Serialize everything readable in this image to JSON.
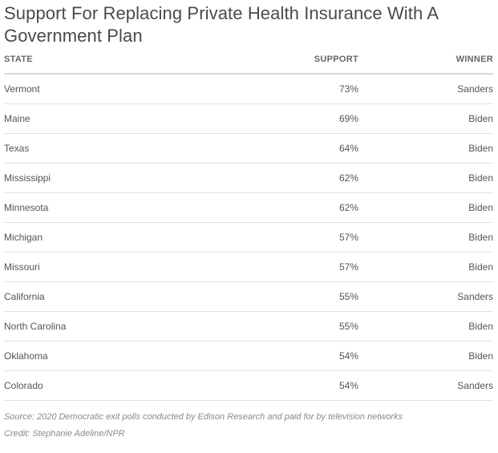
{
  "chart_data": {
    "type": "table",
    "title": "Support For Replacing Private Health Insurance With A Government Plan",
    "columns": [
      "STATE",
      "SUPPORT",
      "WINNER"
    ],
    "rows": [
      {
        "state": "Vermont",
        "support": "73%",
        "winner": "Sanders"
      },
      {
        "state": "Maine",
        "support": "69%",
        "winner": "Biden"
      },
      {
        "state": "Texas",
        "support": "64%",
        "winner": "Biden"
      },
      {
        "state": "Mississippi",
        "support": "62%",
        "winner": "Biden"
      },
      {
        "state": "Minnesota",
        "support": "62%",
        "winner": "Biden"
      },
      {
        "state": "Michigan",
        "support": "57%",
        "winner": "Biden"
      },
      {
        "state": "Missouri",
        "support": "57%",
        "winner": "Biden"
      },
      {
        "state": "California",
        "support": "55%",
        "winner": "Sanders"
      },
      {
        "state": "North Carolina",
        "support": "55%",
        "winner": "Biden"
      },
      {
        "state": "Oklahoma",
        "support": "54%",
        "winner": "Biden"
      },
      {
        "state": "Colorado",
        "support": "54%",
        "winner": "Sanders"
      }
    ],
    "source": "Source: 2020 Democratic exit polls conducted by Edison Research and paid for by television networks",
    "credit": "Credit: Stephanie Adeline/NPR"
  }
}
